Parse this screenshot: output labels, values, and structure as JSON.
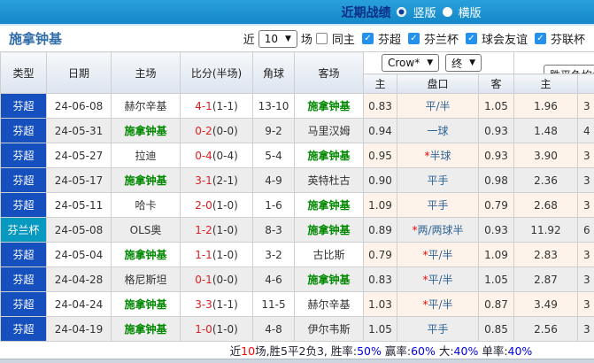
{
  "topbar": {
    "title": "近期战绩",
    "radio_selected_label": "竖版",
    "radio_unselected_label": "横版"
  },
  "filter": {
    "team": "施拿钟基",
    "near_label": "近",
    "count_value": "10",
    "count_suffix": "场",
    "same_home_label": "同主",
    "leagues": [
      "芬超",
      "芬兰杯",
      "球会友谊",
      "芬联杯"
    ]
  },
  "table": {
    "headers": {
      "type": "类型",
      "date": "日期",
      "home": "主场",
      "score": "比分(半场)",
      "corner": "角球",
      "away": "客场",
      "avg": "胜平负均值"
    },
    "dropdown_company": "Crow*",
    "dropdown_stage": "终",
    "sub_headers": {
      "home": "主",
      "pan": "盘口",
      "away": "客",
      "avg_home": "主"
    },
    "rows": [
      {
        "type": "芬超",
        "date": "24-06-08",
        "home": "赫尔辛基",
        "score": "4-1",
        "half": "(1-1)",
        "corner": "13-10",
        "away": "施拿钟基",
        "odds_home": "0.83",
        "pan_star": "",
        "pan": "平/半",
        "odds_away": "1.05",
        "avg_home": "1.96",
        "partial": "3"
      },
      {
        "type": "芬超",
        "date": "24-05-31",
        "home": "施拿钟基",
        "score": "0-2",
        "half": "(0-0)",
        "corner": "9-2",
        "away": "马里汉姆",
        "odds_home": "0.94",
        "pan_star": "",
        "pan": "一球",
        "odds_away": "0.93",
        "avg_home": "1.48",
        "partial": "4"
      },
      {
        "type": "芬超",
        "date": "24-05-27",
        "home": "拉迪",
        "score": "0-4",
        "half": "(0-4)",
        "corner": "5-4",
        "away": "施拿钟基",
        "odds_home": "0.95",
        "pan_star": "*",
        "pan": "半球",
        "odds_away": "0.93",
        "avg_home": "3.90",
        "partial": "3"
      },
      {
        "type": "芬超",
        "date": "24-05-17",
        "home": "施拿钟基",
        "score": "3-1",
        "half": "(2-1)",
        "corner": "4-9",
        "away": "英特杜古",
        "odds_home": "0.90",
        "pan_star": "",
        "pan": "平手",
        "odds_away": "0.98",
        "avg_home": "2.36",
        "partial": "3"
      },
      {
        "type": "芬超",
        "date": "24-05-11",
        "home": "哈卡",
        "score": "2-0",
        "half": "(1-0)",
        "corner": "1-6",
        "away": "施拿钟基",
        "odds_home": "1.09",
        "pan_star": "",
        "pan": "平手",
        "odds_away": "0.79",
        "avg_home": "2.68",
        "partial": "3"
      },
      {
        "type": "芬兰杯",
        "date": "24-05-08",
        "home": "OLS奥",
        "score": "1-2",
        "half": "(1-0)",
        "corner": "8-3",
        "away": "施拿钟基",
        "odds_home": "0.89",
        "pan_star": "*",
        "pan": "两/两球半",
        "odds_away": "0.93",
        "avg_home": "11.92",
        "partial": "6"
      },
      {
        "type": "芬超",
        "date": "24-05-04",
        "home": "施拿钟基",
        "score": "1-1",
        "half": "(1-0)",
        "corner": "3-2",
        "away": "古比斯",
        "odds_home": "0.79",
        "pan_star": "*",
        "pan": "平/半",
        "odds_away": "1.09",
        "avg_home": "2.83",
        "partial": "3"
      },
      {
        "type": "芬超",
        "date": "24-04-28",
        "home": "格尼斯坦",
        "score": "0-1",
        "half": "(0-0)",
        "corner": "4-6",
        "away": "施拿钟基",
        "odds_home": "0.83",
        "pan_star": "*",
        "pan": "平/半",
        "odds_away": "1.05",
        "avg_home": "2.87",
        "partial": "3"
      },
      {
        "type": "芬超",
        "date": "24-04-24",
        "home": "施拿钟基",
        "score": "3-3",
        "half": "(1-1)",
        "corner": "11-5",
        "away": "赫尔辛基",
        "odds_home": "1.03",
        "pan_star": "*",
        "pan": "平/半",
        "odds_away": "0.87",
        "avg_home": "3.49",
        "partial": "3"
      },
      {
        "type": "芬超",
        "date": "24-04-19",
        "home": "施拿钟基",
        "score": "1-0",
        "half": "(1-0)",
        "corner": "4-8",
        "away": "伊尔韦斯",
        "odds_home": "1.05",
        "pan_star": "",
        "pan": "平手",
        "odds_away": "0.85",
        "avg_home": "2.56",
        "partial": "3"
      }
    ]
  },
  "footer": {
    "segments": [
      {
        "text": "近",
        "color": "#222233"
      },
      {
        "text": "10",
        "color": "#ff0000"
      },
      {
        "text": "场,胜5平2负3, 胜率:",
        "color": "#222233"
      },
      {
        "text": "50%",
        "color": "#0000e0"
      },
      {
        "text": " 赢率:",
        "color": "#222233"
      },
      {
        "text": "60%",
        "color": "#0000e0"
      },
      {
        "text": " 大:",
        "color": "#222233"
      },
      {
        "text": "40%",
        "color": "#0000e0"
      },
      {
        "text": " 单率:",
        "color": "#222233"
      },
      {
        "text": "40%",
        "color": "#0000e0"
      }
    ]
  },
  "colors": {
    "league": {
      "芬超": "#164fbe",
      "芬兰杯": "#0899c1"
    },
    "self_team_green": "#008800",
    "score_red": "#e02020",
    "topbar_blue": "#1a93d2",
    "odds_peach": "#fdf3ea",
    "checked_blue": "#2492ec"
  }
}
